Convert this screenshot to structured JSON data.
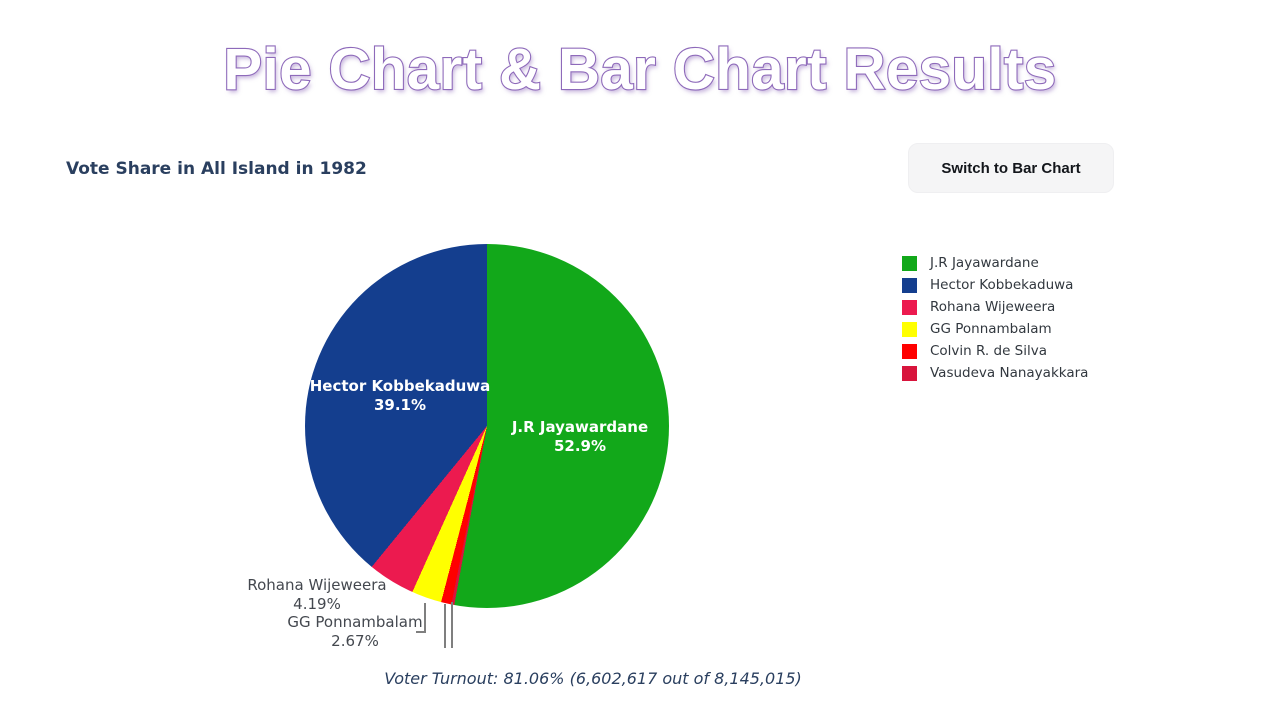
{
  "page": {
    "title": "Pie Chart & Bar Chart Results"
  },
  "theme": {
    "wordart_outline": "#8f6bbb",
    "title_color": "#2a3f5f",
    "button_bg": "#f5f5f6",
    "leader_line": "#7f7f7f"
  },
  "chart": {
    "title": "Vote Share in All Island in 1982",
    "button_label": "Switch to Bar Chart"
  },
  "chart_data": {
    "type": "pie",
    "title": "Vote Share in All Island in 1982",
    "labels": [
      "J.R Jayawardane",
      "Hector Kobbekaduwa",
      "Rohana Wijeweera",
      "GG Ponnambalam",
      "Colvin R. de Silva",
      "Vasudeva Nanayakkara"
    ],
    "values": [
      52.9,
      39.1,
      4.19,
      2.67,
      0.92,
      0.26
    ],
    "colors": [
      "#12a81a",
      "#143e8e",
      "#ec1a4f",
      "#ffff00",
      "#ff0000",
      "#d8143c"
    ],
    "start_angle_deg": 0,
    "direction": "clockwise",
    "draw_order": [
      0,
      5,
      4,
      3,
      2,
      1
    ],
    "legend_position": "right",
    "inside_labels": [
      {
        "name": "J.R Jayawardane",
        "pct": "52.9%"
      },
      {
        "name": "Hector Kobbekaduwa",
        "pct": "39.1%"
      }
    ],
    "outside_labels": [
      {
        "name": "Rohana Wijeweera",
        "pct": "4.19%"
      },
      {
        "name": "GG Ponnambalam",
        "pct": "2.67%"
      }
    ],
    "caption": "Voter Turnout: 81.06% (6,602,617 out of 8,145,015)"
  }
}
